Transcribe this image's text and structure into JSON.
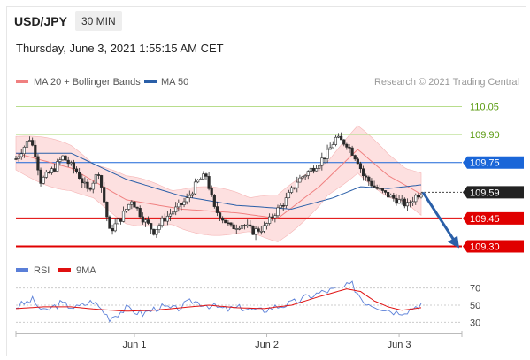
{
  "header": {
    "symbol": "USD/JPY",
    "timeframe": "30 MIN",
    "datetime": "Thursday, June 3, 2021 1:55:15 AM CET"
  },
  "legend": {
    "items": [
      {
        "label": "MA 20 + Bollinger Bands",
        "color": "#f08080"
      },
      {
        "label": "MA 50",
        "color": "#2a5fa8"
      }
    ],
    "credit": "Research © 2021 Trading Central"
  },
  "rsi_legend": {
    "items": [
      {
        "label": "RSI",
        "color": "#5a7fd8"
      },
      {
        "label": "9MA",
        "color": "#e01010"
      }
    ]
  },
  "chart_data": [
    {
      "type": "candlestick",
      "ylim": [
        109.25,
        110.1
      ],
      "x_ticks": [
        {
          "label": "Jun 1",
          "index": 43
        },
        {
          "label": "Jun 2",
          "index": 91
        },
        {
          "label": "Jun 3",
          "index": 139
        }
      ],
      "levels": [
        {
          "value": 110.05,
          "label": "110.05",
          "color": "#6aa016",
          "kind": "target"
        },
        {
          "value": 109.9,
          "label": "109.90",
          "color": "#6aa016",
          "kind": "target"
        },
        {
          "value": 109.75,
          "label": "109.75",
          "color": "#1a66d8",
          "kind": "pivot"
        },
        {
          "value": 109.59,
          "label": "109.59",
          "color": "#222222",
          "kind": "last"
        },
        {
          "value": 109.45,
          "label": "109.45",
          "color": "#e00000",
          "kind": "support"
        },
        {
          "value": 109.3,
          "label": "109.30",
          "color": "#e00000",
          "kind": "support"
        }
      ],
      "forecast": {
        "from": 109.59,
        "to": 109.3,
        "direction": "down"
      },
      "keypoints": [
        [
          0,
          109.77
        ],
        [
          5,
          109.88
        ],
        [
          7,
          109.8
        ],
        [
          9,
          109.65
        ],
        [
          14,
          109.72
        ],
        [
          17,
          109.78
        ],
        [
          22,
          109.7
        ],
        [
          26,
          109.6
        ],
        [
          30,
          109.7
        ],
        [
          34,
          109.38
        ],
        [
          38,
          109.45
        ],
        [
          42,
          109.55
        ],
        [
          46,
          109.45
        ],
        [
          50,
          109.38
        ],
        [
          54,
          109.45
        ],
        [
          58,
          109.5
        ],
        [
          62,
          109.55
        ],
        [
          66,
          109.65
        ],
        [
          69,
          109.68
        ],
        [
          72,
          109.5
        ],
        [
          75,
          109.45
        ],
        [
          78,
          109.4
        ],
        [
          82,
          109.42
        ],
        [
          86,
          109.38
        ],
        [
          90,
          109.4
        ],
        [
          94,
          109.48
        ],
        [
          98,
          109.55
        ],
        [
          102,
          109.65
        ],
        [
          106,
          109.7
        ],
        [
          110,
          109.75
        ],
        [
          113,
          109.8
        ],
        [
          116,
          109.88
        ],
        [
          120,
          109.85
        ],
        [
          124,
          109.76
        ],
        [
          126,
          109.68
        ],
        [
          130,
          109.62
        ],
        [
          134,
          109.58
        ],
        [
          138,
          109.55
        ],
        [
          142,
          109.52
        ],
        [
          145,
          109.57
        ],
        [
          147,
          109.59
        ]
      ],
      "ma20_keypoints": [
        [
          0,
          109.8
        ],
        [
          20,
          109.72
        ],
        [
          40,
          109.55
        ],
        [
          60,
          109.5
        ],
        [
          80,
          109.48
        ],
        [
          95,
          109.45
        ],
        [
          110,
          109.62
        ],
        [
          124,
          109.82
        ],
        [
          135,
          109.68
        ],
        [
          147,
          109.58
        ]
      ],
      "ma50_keypoints": [
        [
          0,
          109.8
        ],
        [
          20,
          109.8
        ],
        [
          40,
          109.66
        ],
        [
          60,
          109.57
        ],
        [
          80,
          109.52
        ],
        [
          100,
          109.5
        ],
        [
          115,
          109.56
        ],
        [
          125,
          109.62
        ],
        [
          135,
          109.61
        ],
        [
          147,
          109.63
        ]
      ],
      "band_width": 0.09
    },
    {
      "type": "line",
      "name": "RSI",
      "ylim": [
        20,
        80
      ],
      "levels": [
        70,
        50,
        30
      ],
      "level_labels": [
        "70",
        "50",
        "30"
      ],
      "rsi_keypoints": [
        [
          0,
          48
        ],
        [
          6,
          56
        ],
        [
          10,
          42
        ],
        [
          16,
          52
        ],
        [
          22,
          47
        ],
        [
          28,
          55
        ],
        [
          34,
          35
        ],
        [
          40,
          46
        ],
        [
          46,
          40
        ],
        [
          52,
          48
        ],
        [
          58,
          45
        ],
        [
          64,
          55
        ],
        [
          70,
          50
        ],
        [
          76,
          45
        ],
        [
          82,
          47
        ],
        [
          88,
          43
        ],
        [
          94,
          48
        ],
        [
          100,
          52
        ],
        [
          106,
          60
        ],
        [
          112,
          66
        ],
        [
          118,
          70
        ],
        [
          122,
          74
        ],
        [
          126,
          55
        ],
        [
          130,
          50
        ],
        [
          134,
          46
        ],
        [
          138,
          42
        ],
        [
          142,
          44
        ],
        [
          147,
          52
        ]
      ],
      "ma9_keypoints": [
        [
          0,
          46
        ],
        [
          10,
          48
        ],
        [
          20,
          48
        ],
        [
          30,
          45
        ],
        [
          40,
          43
        ],
        [
          50,
          44
        ],
        [
          60,
          47
        ],
        [
          70,
          50
        ],
        [
          80,
          47
        ],
        [
          90,
          46
        ],
        [
          100,
          50
        ],
        [
          110,
          60
        ],
        [
          120,
          69
        ],
        [
          125,
          66
        ],
        [
          130,
          55
        ],
        [
          135,
          48
        ],
        [
          140,
          44
        ],
        [
          147,
          47
        ]
      ]
    }
  ]
}
